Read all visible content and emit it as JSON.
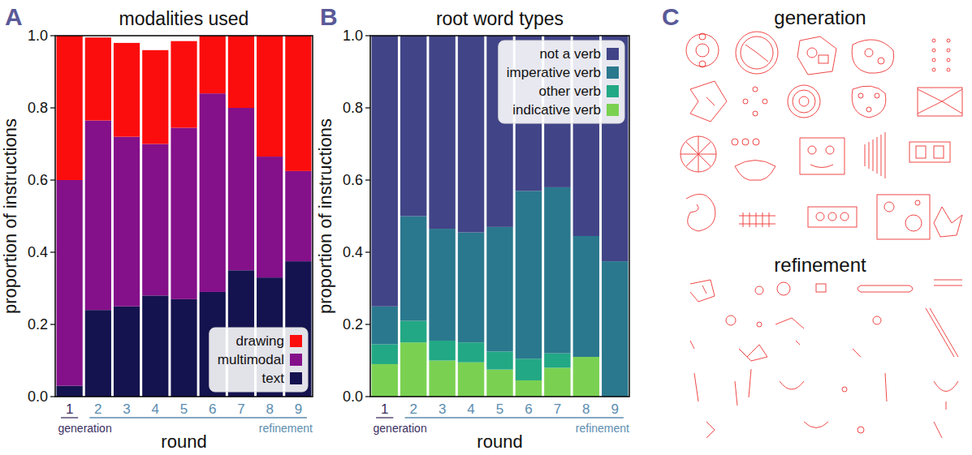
{
  "chart_data": [
    {
      "type": "bar",
      "stacked": true,
      "panel_label": "A",
      "title": "modalities used",
      "x_label": "round",
      "y_label": "proportion of instructions",
      "categories": [
        "1",
        "2",
        "3",
        "4",
        "5",
        "6",
        "7",
        "8",
        "9"
      ],
      "annotations": [
        "generation",
        "refinement"
      ],
      "series": [
        {
          "name": "text",
          "color": "#14134f",
          "values": [
            0.03,
            0.24,
            0.25,
            0.28,
            0.27,
            0.29,
            0.35,
            0.33,
            0.375
          ]
        },
        {
          "name": "multimodal",
          "color": "#84108a",
          "values": [
            0.57,
            0.525,
            0.47,
            0.42,
            0.475,
            0.55,
            0.45,
            0.335,
            0.25
          ]
        },
        {
          "name": "drawing",
          "color": "#fc0d0d",
          "values": [
            0.4,
            0.23,
            0.26,
            0.26,
            0.24,
            0.16,
            0.2,
            0.335,
            0.375
          ]
        }
      ],
      "ylim": [
        0,
        1
      ],
      "yticks": [
        {
          "value": 0,
          "label": "0.0"
        },
        {
          "value": 0.2,
          "label": "0.2"
        },
        {
          "value": 0.4,
          "label": "0.4"
        },
        {
          "value": 0.6,
          "label": "0.6"
        },
        {
          "value": 0.8,
          "label": "0.8"
        },
        {
          "value": 1,
          "label": "1.0"
        }
      ],
      "legend": "lower right"
    },
    {
      "type": "bar",
      "stacked": true,
      "panel_label": "B",
      "title": "root word types",
      "x_label": "round",
      "y_label": "proportion of instructions",
      "categories": [
        "1",
        "2",
        "3",
        "4",
        "5",
        "6",
        "7",
        "8",
        "9"
      ],
      "annotations": [
        "generation",
        "refinement"
      ],
      "series": [
        {
          "name": "indicative verb",
          "color": "#7ad151",
          "values": [
            0.09,
            0.15,
            0.1,
            0.095,
            0.075,
            0.045,
            0.08,
            0.11,
            0
          ]
        },
        {
          "name": "other verb",
          "color": "#22a884",
          "values": [
            0.055,
            0.06,
            0.055,
            0.055,
            0.05,
            0.06,
            0.04,
            0,
            0
          ]
        },
        {
          "name": "imperative verb",
          "color": "#2a788e",
          "values": [
            0.105,
            0.29,
            0.31,
            0.305,
            0.345,
            0.465,
            0.46,
            0.335,
            0.375
          ]
        },
        {
          "name": "not a verb",
          "color": "#414487",
          "values": [
            0.75,
            0.5,
            0.535,
            0.545,
            0.53,
            0.43,
            0.42,
            0.555,
            0.625
          ]
        }
      ],
      "ylim": [
        0,
        1
      ],
      "yticks": [
        {
          "value": 0,
          "label": "0.0"
        },
        {
          "value": 0.2,
          "label": "0.2"
        },
        {
          "value": 0.4,
          "label": "0.4"
        },
        {
          "value": 0.6,
          "label": "0.6"
        },
        {
          "value": 0.8,
          "label": "0.8"
        },
        {
          "value": 1,
          "label": "1.0"
        }
      ],
      "legend": "upper right"
    }
  ],
  "panel_c": {
    "panel_label": "C",
    "titles": [
      "generation",
      "refinement"
    ]
  }
}
